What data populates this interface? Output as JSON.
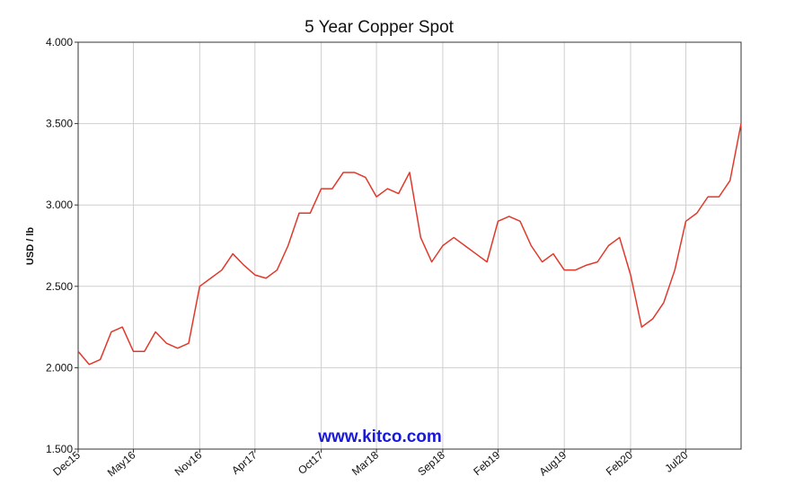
{
  "chart_data": {
    "type": "line",
    "title": "5 Year Copper Spot",
    "y_label": "USD / lb",
    "watermark": "www.kitco.com",
    "categories": [
      "Dec15",
      null,
      null,
      null,
      null,
      "May16",
      null,
      null,
      null,
      null,
      null,
      "Nov16",
      null,
      null,
      null,
      null,
      "Apr17",
      null,
      null,
      null,
      null,
      null,
      "Oct17",
      null,
      null,
      null,
      null,
      "Mar18",
      null,
      null,
      null,
      null,
      null,
      "Sep18",
      null,
      null,
      null,
      null,
      "Feb19",
      null,
      null,
      null,
      null,
      null,
      "Aug19",
      null,
      null,
      null,
      null,
      null,
      "Feb20",
      null,
      null,
      null,
      null,
      "Jul20",
      null,
      null,
      null,
      null,
      null
    ],
    "series": [
      {
        "name": "Copper",
        "color": "#e0392b",
        "values": [
          2.1,
          2.02,
          2.05,
          2.22,
          2.25,
          2.1,
          2.1,
          2.22,
          2.15,
          2.12,
          2.15,
          2.5,
          2.55,
          2.6,
          2.7,
          2.63,
          2.57,
          2.55,
          2.6,
          2.75,
          2.95,
          2.95,
          3.1,
          3.1,
          3.2,
          3.2,
          3.17,
          3.05,
          3.1,
          3.07,
          3.2,
          2.8,
          2.65,
          2.75,
          2.8,
          2.75,
          2.7,
          2.65,
          2.9,
          2.93,
          2.9,
          2.75,
          2.65,
          2.7,
          2.6,
          2.6,
          2.63,
          2.65,
          2.75,
          2.8,
          2.57,
          2.25,
          2.3,
          2.4,
          2.6,
          2.9,
          2.95,
          3.05,
          3.05,
          3.15,
          3.5
        ]
      }
    ],
    "ylim": [
      1.5,
      4.0
    ],
    "yticks": [
      {
        "value": 1.5,
        "label": "1.500"
      },
      {
        "value": 2.0,
        "label": "2.000"
      },
      {
        "value": 2.5,
        "label": "2.500"
      },
      {
        "value": 3.0,
        "label": "3.000"
      },
      {
        "value": 3.5,
        "label": "3.500"
      },
      {
        "value": 4.0,
        "label": "4.000"
      }
    ],
    "grid": true
  }
}
